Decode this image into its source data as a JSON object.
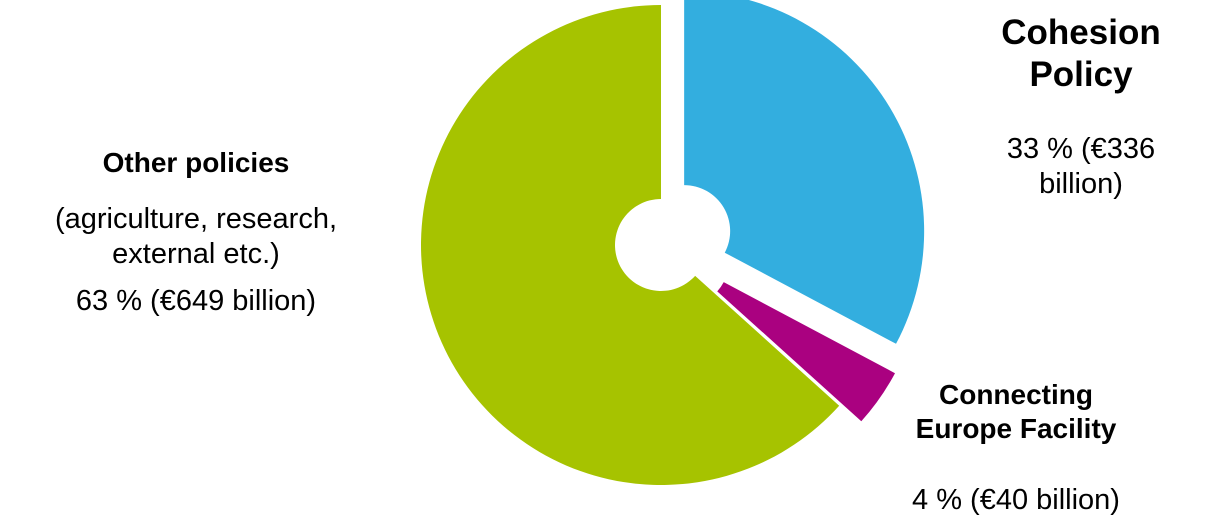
{
  "chart_data": {
    "type": "pie",
    "title": "",
    "slices": [
      {
        "key": "cohesion",
        "label": "Cohesion Policy",
        "percent": 33,
        "amount_text": "33 % (€336 billion)",
        "value_billion_eur": 336,
        "color": "#33AEDF",
        "exploded": true
      },
      {
        "key": "cef",
        "label": "Connecting Europe Facility",
        "percent": 4,
        "amount_text": "4 % (€40 billion)",
        "value_billion_eur": 40,
        "color": "#AA0180",
        "exploded": true
      },
      {
        "key": "other",
        "label": "Other policies",
        "note": "(agriculture, research, external etc.)",
        "percent": 63,
        "amount_text": "63 % (€649 billion)",
        "value_billion_eur": 649,
        "color": "#A6C300",
        "exploded": false
      }
    ]
  },
  "labels": {
    "cohesion_title_line1": "Cohesion",
    "cohesion_title_line2": "Policy",
    "cohesion_value_line1": "33 % (€336",
    "cohesion_value_line2": "billion)",
    "other_title": "Other policies",
    "other_note_line1": "(agriculture, research,",
    "other_note_line2": "external etc.)",
    "other_value": "63 % (€649 billion)",
    "cef_title_line1": "Connecting",
    "cef_title_line2": "Europe Facility",
    "cef_value": "4 % (€40 billion)"
  }
}
